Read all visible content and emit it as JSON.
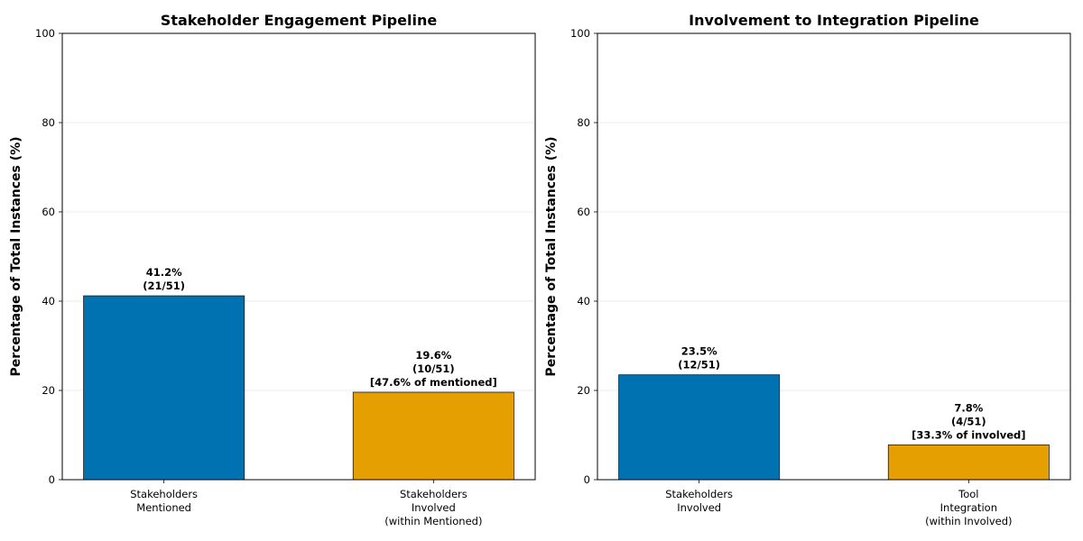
{
  "chart_data": [
    {
      "type": "bar",
      "title": "Stakeholder Engagement Pipeline",
      "ylabel": "Percentage of Total Instances (%)",
      "xlabel": "",
      "ylim": [
        0,
        100
      ],
      "yticks": [
        0,
        20,
        40,
        60,
        80,
        100
      ],
      "grid": "y",
      "categories": [
        [
          "Stakeholders",
          "Mentioned"
        ],
        [
          "Stakeholders",
          "Involved",
          "(within Mentioned)"
        ]
      ],
      "values": [
        41.2,
        19.6
      ],
      "colors": [
        "#0072b2",
        "#e69f00"
      ],
      "data_labels": [
        [
          "41.2%",
          "(21/51)"
        ],
        [
          "19.6%",
          "(10/51)",
          "[47.6% of mentioned]"
        ]
      ]
    },
    {
      "type": "bar",
      "title": "Involvement to Integration Pipeline",
      "ylabel": "Percentage of Total Instances (%)",
      "xlabel": "",
      "ylim": [
        0,
        100
      ],
      "yticks": [
        0,
        20,
        40,
        60,
        80,
        100
      ],
      "grid": "y",
      "categories": [
        [
          "Stakeholders",
          "Involved"
        ],
        [
          "Tool",
          "Integration",
          "(within Involved)"
        ]
      ],
      "values": [
        23.5,
        7.8
      ],
      "colors": [
        "#0072b2",
        "#e69f00"
      ],
      "data_labels": [
        [
          "23.5%",
          "(12/51)"
        ],
        [
          "7.8%",
          "(4/51)",
          "[33.3% of involved]"
        ]
      ]
    }
  ]
}
